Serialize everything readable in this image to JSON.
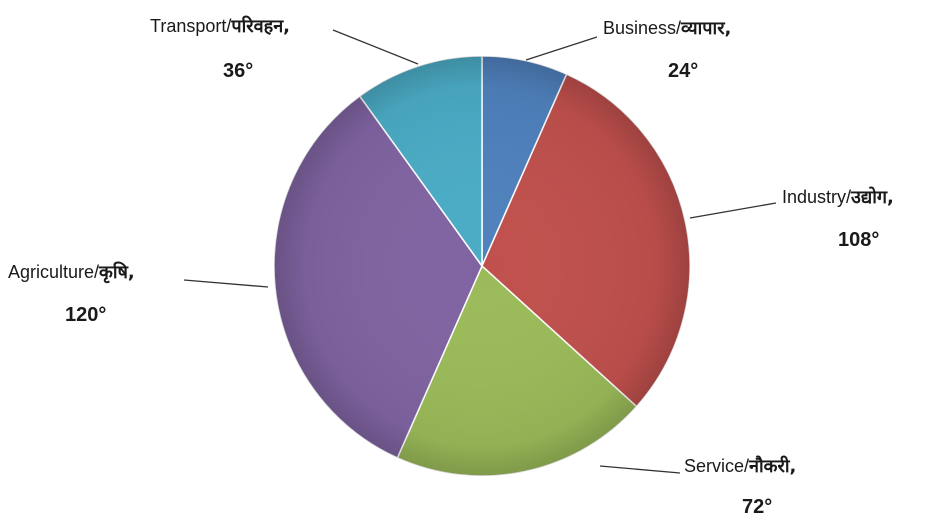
{
  "chart_data": {
    "type": "pie",
    "unit": "°",
    "slices": [
      {
        "name_en": "Business",
        "name_hi": "व्यापार",
        "value": 24,
        "color": "#4f81bd"
      },
      {
        "name_en": "Industry",
        "name_hi": "उद्योग",
        "value": 108,
        "color": "#c0504d"
      },
      {
        "name_en": "Service",
        "name_hi": "नौकरी",
        "value": 72,
        "color": "#9bbb59"
      },
      {
        "name_en": "Agriculture",
        "name_hi": "कृषि",
        "value": 120,
        "color": "#8064a2"
      },
      {
        "name_en": "Transport",
        "name_hi": "परिवहन",
        "value": 36,
        "color": "#4bacc6"
      }
    ]
  },
  "labels": {
    "business": {
      "en": "Business/",
      "hi": "व्यापार,",
      "value": "24°"
    },
    "industry": {
      "en": "Industry/",
      "hi": "उद्योग,",
      "value": "108°"
    },
    "service": {
      "en": "Service/",
      "hi": "नौकरी,",
      "value": "72°"
    },
    "agriculture": {
      "en": "Agriculture/",
      "hi": "कृषि,",
      "value": "120°"
    },
    "transport": {
      "en": "Transport/",
      "hi": "परिवहन,",
      "value": "36°"
    }
  }
}
